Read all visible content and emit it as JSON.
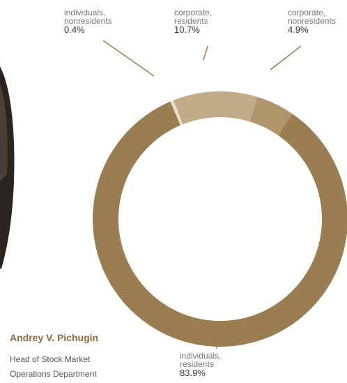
{
  "chart_data": {
    "type": "donut",
    "categories": [
      "individuals, nonresidents",
      "corporate, residents",
      "corporate, nonresidents",
      "individuals, residents"
    ],
    "values": [
      0.4,
      10.7,
      4.9,
      83.9
    ],
    "value_labels": [
      "0.4%",
      "10.7%",
      "4.9%",
      "83.9%"
    ],
    "colors": [
      "#e9dfcd",
      "#c1ab89",
      "#af946c",
      "#9a7d51"
    ]
  },
  "person": {
    "name": "Andrey V. Pichugin",
    "position": "Head of Stock Market Operations Department"
  }
}
